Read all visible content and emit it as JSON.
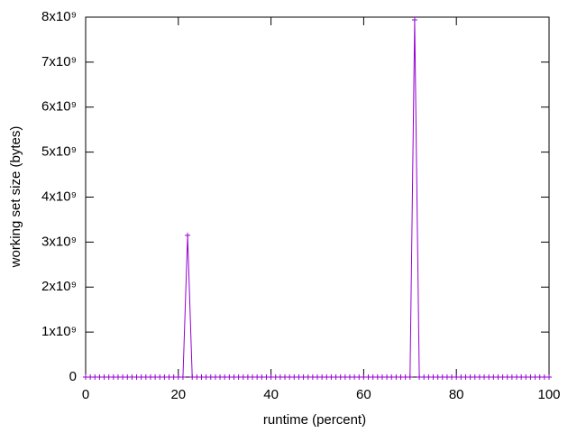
{
  "chart_data": {
    "type": "line",
    "xlabel": "runtime (percent)",
    "ylabel": "working set size (bytes)",
    "x": [
      0,
      1,
      2,
      3,
      4,
      5,
      6,
      7,
      8,
      9,
      10,
      11,
      12,
      13,
      14,
      15,
      16,
      17,
      18,
      19,
      20,
      21,
      22,
      23,
      24,
      25,
      26,
      27,
      28,
      29,
      30,
      31,
      32,
      33,
      34,
      35,
      36,
      37,
      38,
      39,
      40,
      41,
      42,
      43,
      44,
      45,
      46,
      47,
      48,
      49,
      50,
      51,
      52,
      53,
      54,
      55,
      56,
      57,
      58,
      59,
      60,
      61,
      62,
      63,
      64,
      65,
      66,
      67,
      68,
      69,
      70,
      71,
      72,
      73,
      74,
      75,
      76,
      77,
      78,
      79,
      80,
      81,
      82,
      83,
      84,
      85,
      86,
      87,
      88,
      89,
      90,
      91,
      92,
      93,
      94,
      95,
      96,
      97,
      98,
      99,
      100
    ],
    "values": [
      0,
      0,
      0,
      0,
      0,
      0,
      0,
      0,
      0,
      0,
      0,
      0,
      0,
      0,
      0,
      0,
      0,
      0,
      0,
      0,
      0,
      0,
      3150000000,
      0,
      0,
      0,
      0,
      0,
      0,
      0,
      0,
      0,
      0,
      0,
      0,
      0,
      0,
      0,
      0,
      0,
      0,
      0,
      0,
      0,
      0,
      0,
      0,
      0,
      0,
      0,
      0,
      0,
      0,
      0,
      0,
      0,
      0,
      0,
      0,
      0,
      0,
      0,
      0,
      0,
      0,
      0,
      0,
      0,
      0,
      0,
      0,
      7940000000,
      0,
      0,
      0,
      0,
      0,
      0,
      0,
      0,
      0,
      0,
      0,
      0,
      0,
      0,
      0,
      0,
      0,
      0,
      0,
      0,
      0,
      0,
      0,
      0,
      0,
      0,
      0,
      0,
      0
    ],
    "color": "#9400d3",
    "xlim": [
      0,
      100
    ],
    "xticks": [
      0,
      20,
      40,
      60,
      80,
      100
    ],
    "ylim": [
      0,
      8000000000
    ],
    "yticks": [
      0,
      {
        "value": 1000000000,
        "label": "1x10⁹"
      },
      {
        "value": 2000000000,
        "label": "2x10⁹"
      },
      {
        "value": 3000000000,
        "label": "3x10⁹"
      },
      {
        "value": 4000000000,
        "label": "4x10⁹"
      },
      {
        "value": 5000000000,
        "label": "5x10⁹"
      },
      {
        "value": 6000000000,
        "label": "6x10⁹"
      },
      {
        "value": 7000000000,
        "label": "7x10⁹"
      },
      {
        "value": 8000000000,
        "label": "8x10⁹"
      }
    ]
  }
}
